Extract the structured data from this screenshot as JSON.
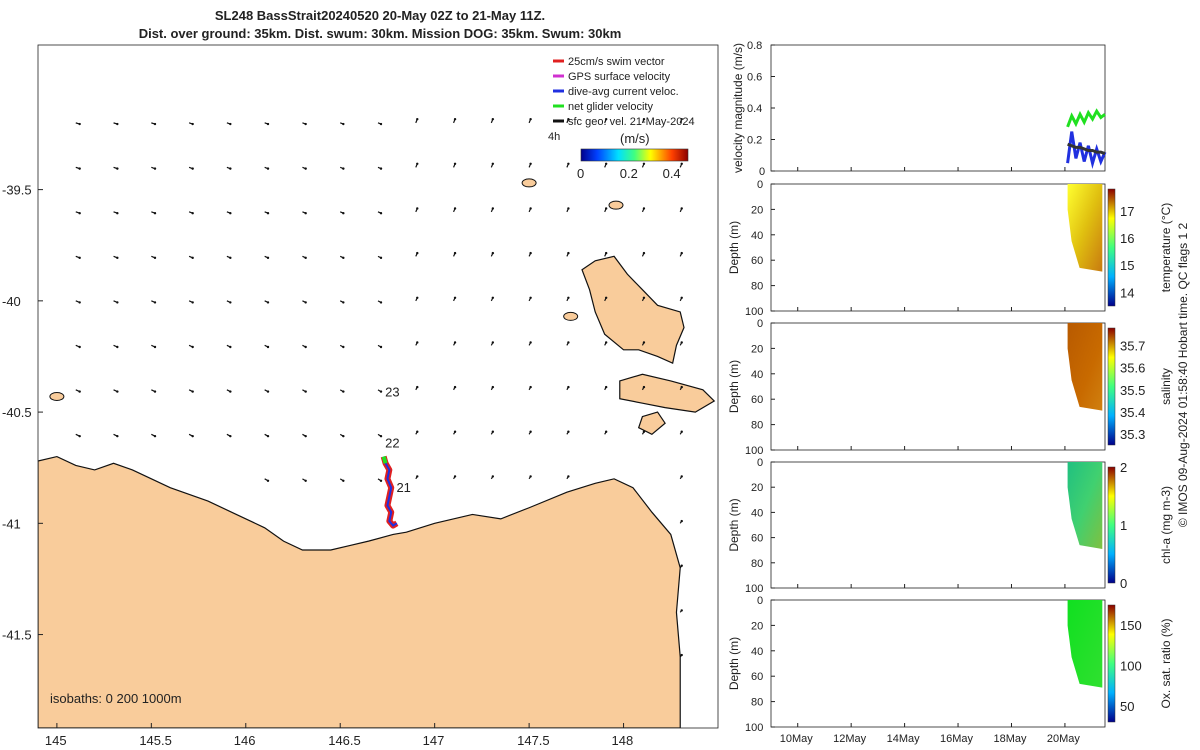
{
  "header": {
    "title_line1": "SL248 BassStrait20240520 20-May 02Z to 21-May 11Z.",
    "title_line2": "Dist. over ground: 35km. Dist. swum: 30km. Mission DOG: 35km. Swum: 30km"
  },
  "footer": {
    "credit": "© IMOS 09-Aug-2024 01:58:40 Hobart time. QC flags 1  2"
  },
  "colors": {
    "land": "#f9cc9b",
    "coast": "#111111",
    "track_swim": "#e02020",
    "track_gps": "#d030d0",
    "track_current": "#2030e0",
    "track_net": "#20e020",
    "arrows": "#111111"
  },
  "chart_data": [
    {
      "type": "map",
      "xlim": [
        144.9,
        148.5
      ],
      "ylim": [
        -41.92,
        -38.85
      ],
      "xticks": [
        145,
        145.5,
        146,
        146.5,
        147,
        147.5,
        148
      ],
      "xtick_labels": [
        "145",
        "145.5",
        "146",
        "146.5",
        "147",
        "147.5",
        "148"
      ],
      "yticks": [
        -39.5,
        -40,
        -40.5,
        -41,
        -41.5
      ],
      "ytick_labels": [
        "-39.5",
        "-40",
        "-40.5",
        "-41",
        "-41.5"
      ],
      "legend": {
        "position": "top-right",
        "entries": [
          "25cm/s swim vector",
          "GPS surface velocity",
          "dive-avg current veloc.",
          "net glider velocity",
          "sfc geo. vel. 21-May-2024"
        ],
        "extra_label": "4h"
      },
      "colorbar": {
        "label": "(m/s)",
        "ticks": [
          "0",
          "0.2",
          "0.4"
        ],
        "range": [
          0,
          0.5
        ]
      },
      "annotations": [
        {
          "text": "23",
          "lon": 146.78,
          "lat": -40.43
        },
        {
          "text": "22",
          "lon": 146.78,
          "lat": -40.66
        },
        {
          "text": "21",
          "lon": 146.84,
          "lat": -40.86
        }
      ],
      "isobaths": "isobaths: 0   200  1000m",
      "track": [
        [
          146.73,
          -40.7
        ],
        [
          146.74,
          -40.73
        ],
        [
          146.76,
          -40.76
        ],
        [
          146.75,
          -40.8
        ],
        [
          146.77,
          -40.84
        ],
        [
          146.76,
          -40.88
        ],
        [
          146.75,
          -40.92
        ],
        [
          146.77,
          -40.95
        ],
        [
          146.76,
          -40.99
        ],
        [
          146.78,
          -41.01
        ],
        [
          146.8,
          -41.0
        ]
      ],
      "surface_vectors": [
        {
          "lon": 145.1,
          "lat": -39.4,
          "u": 0.1,
          "v": 0.0
        },
        {
          "lon": 145.5,
          "lat": -39.4,
          "u": 0.1,
          "v": -0.02
        },
        {
          "lon": 146.0,
          "lat": -39.4,
          "u": 0.1,
          "v": -0.03
        },
        {
          "lon": 146.5,
          "lat": -39.4,
          "u": 0.08,
          "v": -0.04
        },
        {
          "lon": 147.0,
          "lat": -39.4,
          "u": 0.02,
          "v": 0.1
        },
        {
          "lon": 147.5,
          "lat": -39.4,
          "u": 0.0,
          "v": 0.12
        }
      ]
    },
    {
      "type": "line",
      "ylabel": "velocity magnitude (m/s)",
      "ylim": [
        0,
        0.8
      ],
      "yticks": [
        "0",
        "0.2",
        "0.4",
        "0.6",
        "0.8"
      ],
      "series": [
        {
          "values": [
            0.28,
            0.35,
            0.3,
            0.36,
            0.31,
            0.37,
            0.33,
            0.38,
            0.34,
            0.36
          ]
        },
        {
          "values": [
            0.05,
            0.25,
            0.08,
            0.18,
            0.06,
            0.16,
            0.05,
            0.14,
            0.06,
            0.12
          ]
        },
        {
          "values": [
            0.17,
            0.16,
            0.15,
            0.15,
            0.14,
            0.13,
            0.13,
            0.12,
            0.12,
            0.11
          ]
        }
      ]
    },
    {
      "type": "heatmap",
      "ylabel": "Depth (m)",
      "clabel": "temperature (°C)",
      "ylim": [
        100,
        0
      ],
      "yticks": [
        "0",
        "20",
        "40",
        "60",
        "80",
        "100"
      ],
      "cticks": [
        "14",
        "15",
        "16",
        "17"
      ],
      "crange": [
        13.5,
        17.8
      ]
    },
    {
      "type": "heatmap",
      "ylabel": "Depth (m)",
      "clabel": "salinity",
      "ylim": [
        100,
        0
      ],
      "yticks": [
        "0",
        "20",
        "40",
        "60",
        "80",
        "100"
      ],
      "cticks": [
        "35.3",
        "35.4",
        "35.5",
        "35.6",
        "35.7"
      ],
      "crange": [
        35.25,
        35.78
      ]
    },
    {
      "type": "heatmap",
      "ylabel": "Depth (m)",
      "clabel": "chl-a (mg m-3)",
      "ylim": [
        100,
        0
      ],
      "yticks": [
        "0",
        "20",
        "40",
        "60",
        "80",
        "100"
      ],
      "cticks": [
        "0",
        "1",
        "2"
      ],
      "crange": [
        0,
        2
      ]
    },
    {
      "type": "heatmap",
      "ylabel": "Depth (m)",
      "clabel": "Ox. sat. ratio (%)",
      "ylim": [
        100,
        0
      ],
      "yticks": [
        "0",
        "20",
        "40",
        "60",
        "80",
        "100"
      ],
      "cticks": [
        "50",
        "100",
        "150"
      ],
      "crange": [
        30,
        175
      ]
    }
  ],
  "time_axis": {
    "ticks": [
      "10May",
      "12May",
      "14May",
      "16May",
      "18May",
      "20May"
    ]
  }
}
